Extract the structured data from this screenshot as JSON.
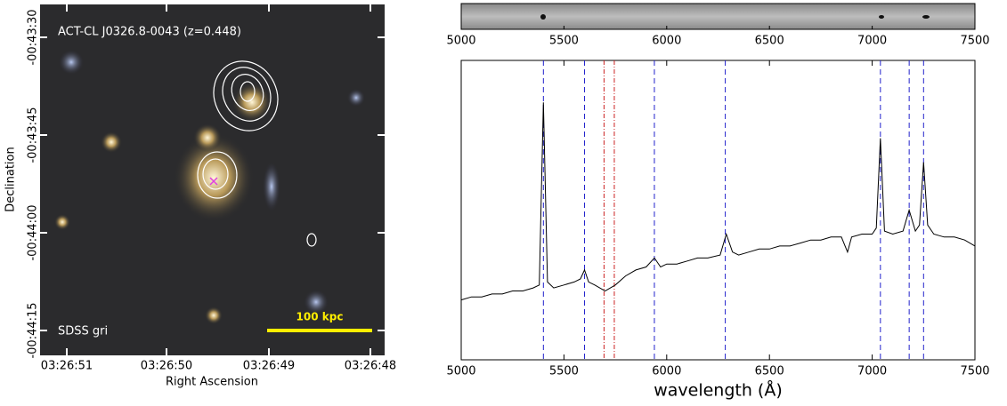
{
  "image_panel": {
    "title": "ACT-CL J0326.8-0043 (z=0.448)",
    "survey": "SDSS gri",
    "scale_bar": "100 kpc",
    "ylabel": "Declination",
    "xlabel": "Right Ascension",
    "yticks": [
      "-00:43:30",
      "-00:43:45",
      "-00:44:00",
      "-00:44:15"
    ],
    "xticks": [
      "03:26:51",
      "03:26:50",
      "03:26:49",
      "03:26:48"
    ]
  },
  "chart_data": [
    {
      "type": "image",
      "xlim": [
        5000,
        7500
      ],
      "xticks": [
        5000,
        5500,
        6000,
        6500,
        7000,
        7500
      ]
    },
    {
      "type": "line",
      "xlabel": "wavelength (Å)",
      "xlim": [
        5000,
        7500
      ],
      "ylim": [
        0,
        1
      ],
      "xticks": [
        5000,
        5500,
        6000,
        6500,
        7000,
        7500
      ],
      "x": [
        5000,
        5050,
        5100,
        5150,
        5200,
        5250,
        5300,
        5350,
        5380,
        5400,
        5420,
        5450,
        5500,
        5550,
        5580,
        5600,
        5620,
        5650,
        5700,
        5750,
        5800,
        5850,
        5900,
        5940,
        5970,
        6000,
        6050,
        6100,
        6150,
        6200,
        6260,
        6290,
        6320,
        6350,
        6400,
        6450,
        6500,
        6550,
        6600,
        6650,
        6700,
        6750,
        6800,
        6850,
        6880,
        6900,
        6950,
        7000,
        7020,
        7040,
        7060,
        7100,
        7150,
        7180,
        7210,
        7230,
        7250,
        7270,
        7300,
        7350,
        7400,
        7450,
        7500
      ],
      "series": [
        {
          "color": "#000000",
          "values": [
            0.2,
            0.21,
            0.21,
            0.22,
            0.22,
            0.23,
            0.23,
            0.24,
            0.25,
            0.86,
            0.26,
            0.24,
            0.25,
            0.26,
            0.27,
            0.3,
            0.26,
            0.25,
            0.23,
            0.25,
            0.28,
            0.3,
            0.31,
            0.34,
            0.31,
            0.32,
            0.32,
            0.33,
            0.34,
            0.34,
            0.35,
            0.42,
            0.36,
            0.35,
            0.36,
            0.37,
            0.37,
            0.38,
            0.38,
            0.39,
            0.4,
            0.4,
            0.41,
            0.41,
            0.36,
            0.41,
            0.42,
            0.42,
            0.44,
            0.74,
            0.43,
            0.42,
            0.43,
            0.5,
            0.43,
            0.45,
            0.66,
            0.45,
            0.42,
            0.41,
            0.41,
            0.4,
            0.38
          ]
        }
      ],
      "vlines": [
        {
          "color": "#2222cc",
          "values": [
            5400,
            5600,
            5940,
            6285,
            7040,
            7180,
            7250
          ]
        },
        {
          "color": "#cc2222",
          "values": [
            5695,
            5745
          ]
        }
      ]
    }
  ]
}
